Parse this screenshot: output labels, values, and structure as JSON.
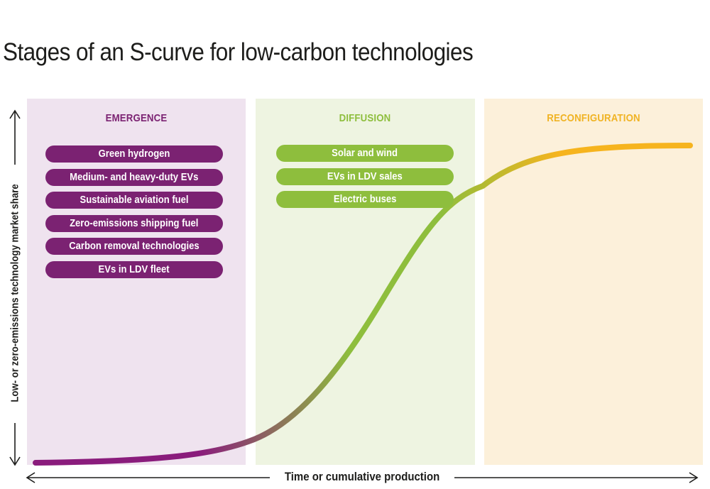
{
  "title": "Stages of an S-curve for low-carbon technologies",
  "axes": {
    "y_label": "Low- or zero-emissions technology market share",
    "x_label": "Time or cumulative production"
  },
  "stages": [
    {
      "key": "emergence",
      "label": "EMERGENCE",
      "color": "#7b2272",
      "items": [
        "Green hydrogen",
        "Medium- and heavy-duty EVs",
        "Sustainable aviation fuel",
        "Zero-emissions shipping fuel",
        "Carbon removal technologies",
        "EVs in LDV fleet"
      ]
    },
    {
      "key": "diffusion",
      "label": "DIFFUSION",
      "color": "#8ebe3d",
      "items": [
        "Solar and wind",
        "EVs in LDV sales",
        "Electric buses"
      ]
    },
    {
      "key": "reconfiguration",
      "label": "RECONFIGURATION",
      "color": "#f0b323",
      "items": []
    }
  ],
  "curve": {
    "gradient_colors": [
      "#8a1c7c",
      "#8ebe3d",
      "#f6b41e"
    ]
  }
}
